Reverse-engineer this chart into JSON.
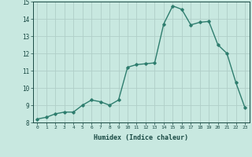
{
  "x": [
    0,
    1,
    2,
    3,
    4,
    5,
    6,
    7,
    8,
    9,
    10,
    11,
    12,
    13,
    14,
    15,
    16,
    17,
    18,
    19,
    20,
    21,
    22,
    23
  ],
  "y": [
    8.2,
    8.3,
    8.5,
    8.6,
    8.6,
    9.0,
    9.3,
    9.2,
    9.0,
    9.3,
    11.2,
    11.35,
    11.4,
    11.45,
    13.7,
    14.75,
    14.55,
    13.65,
    13.8,
    13.85,
    12.5,
    12.0,
    10.3,
    8.85
  ],
  "line_color": "#2e7d6e",
  "bg_color": "#c8e8e0",
  "grid_color": "#b0cec8",
  "tick_color": "#1a4a44",
  "xlabel": "Humidex (Indice chaleur)",
  "ylim": [
    8,
    15
  ],
  "xlim": [
    -0.5,
    23.5
  ],
  "yticks": [
    8,
    9,
    10,
    11,
    12,
    13,
    14,
    15
  ],
  "xticks": [
    0,
    1,
    2,
    3,
    4,
    5,
    6,
    7,
    8,
    9,
    10,
    11,
    12,
    13,
    14,
    15,
    16,
    17,
    18,
    19,
    20,
    21,
    22,
    23
  ],
  "xtick_labels": [
    "0",
    "1",
    "2",
    "3",
    "4",
    "5",
    "6",
    "7",
    "8",
    "9",
    "10",
    "11",
    "12",
    "13",
    "14",
    "15",
    "16",
    "17",
    "18",
    "19",
    "20",
    "21",
    "22",
    "23"
  ],
  "marker": "D",
  "marker_size": 1.8,
  "line_width": 1.0
}
